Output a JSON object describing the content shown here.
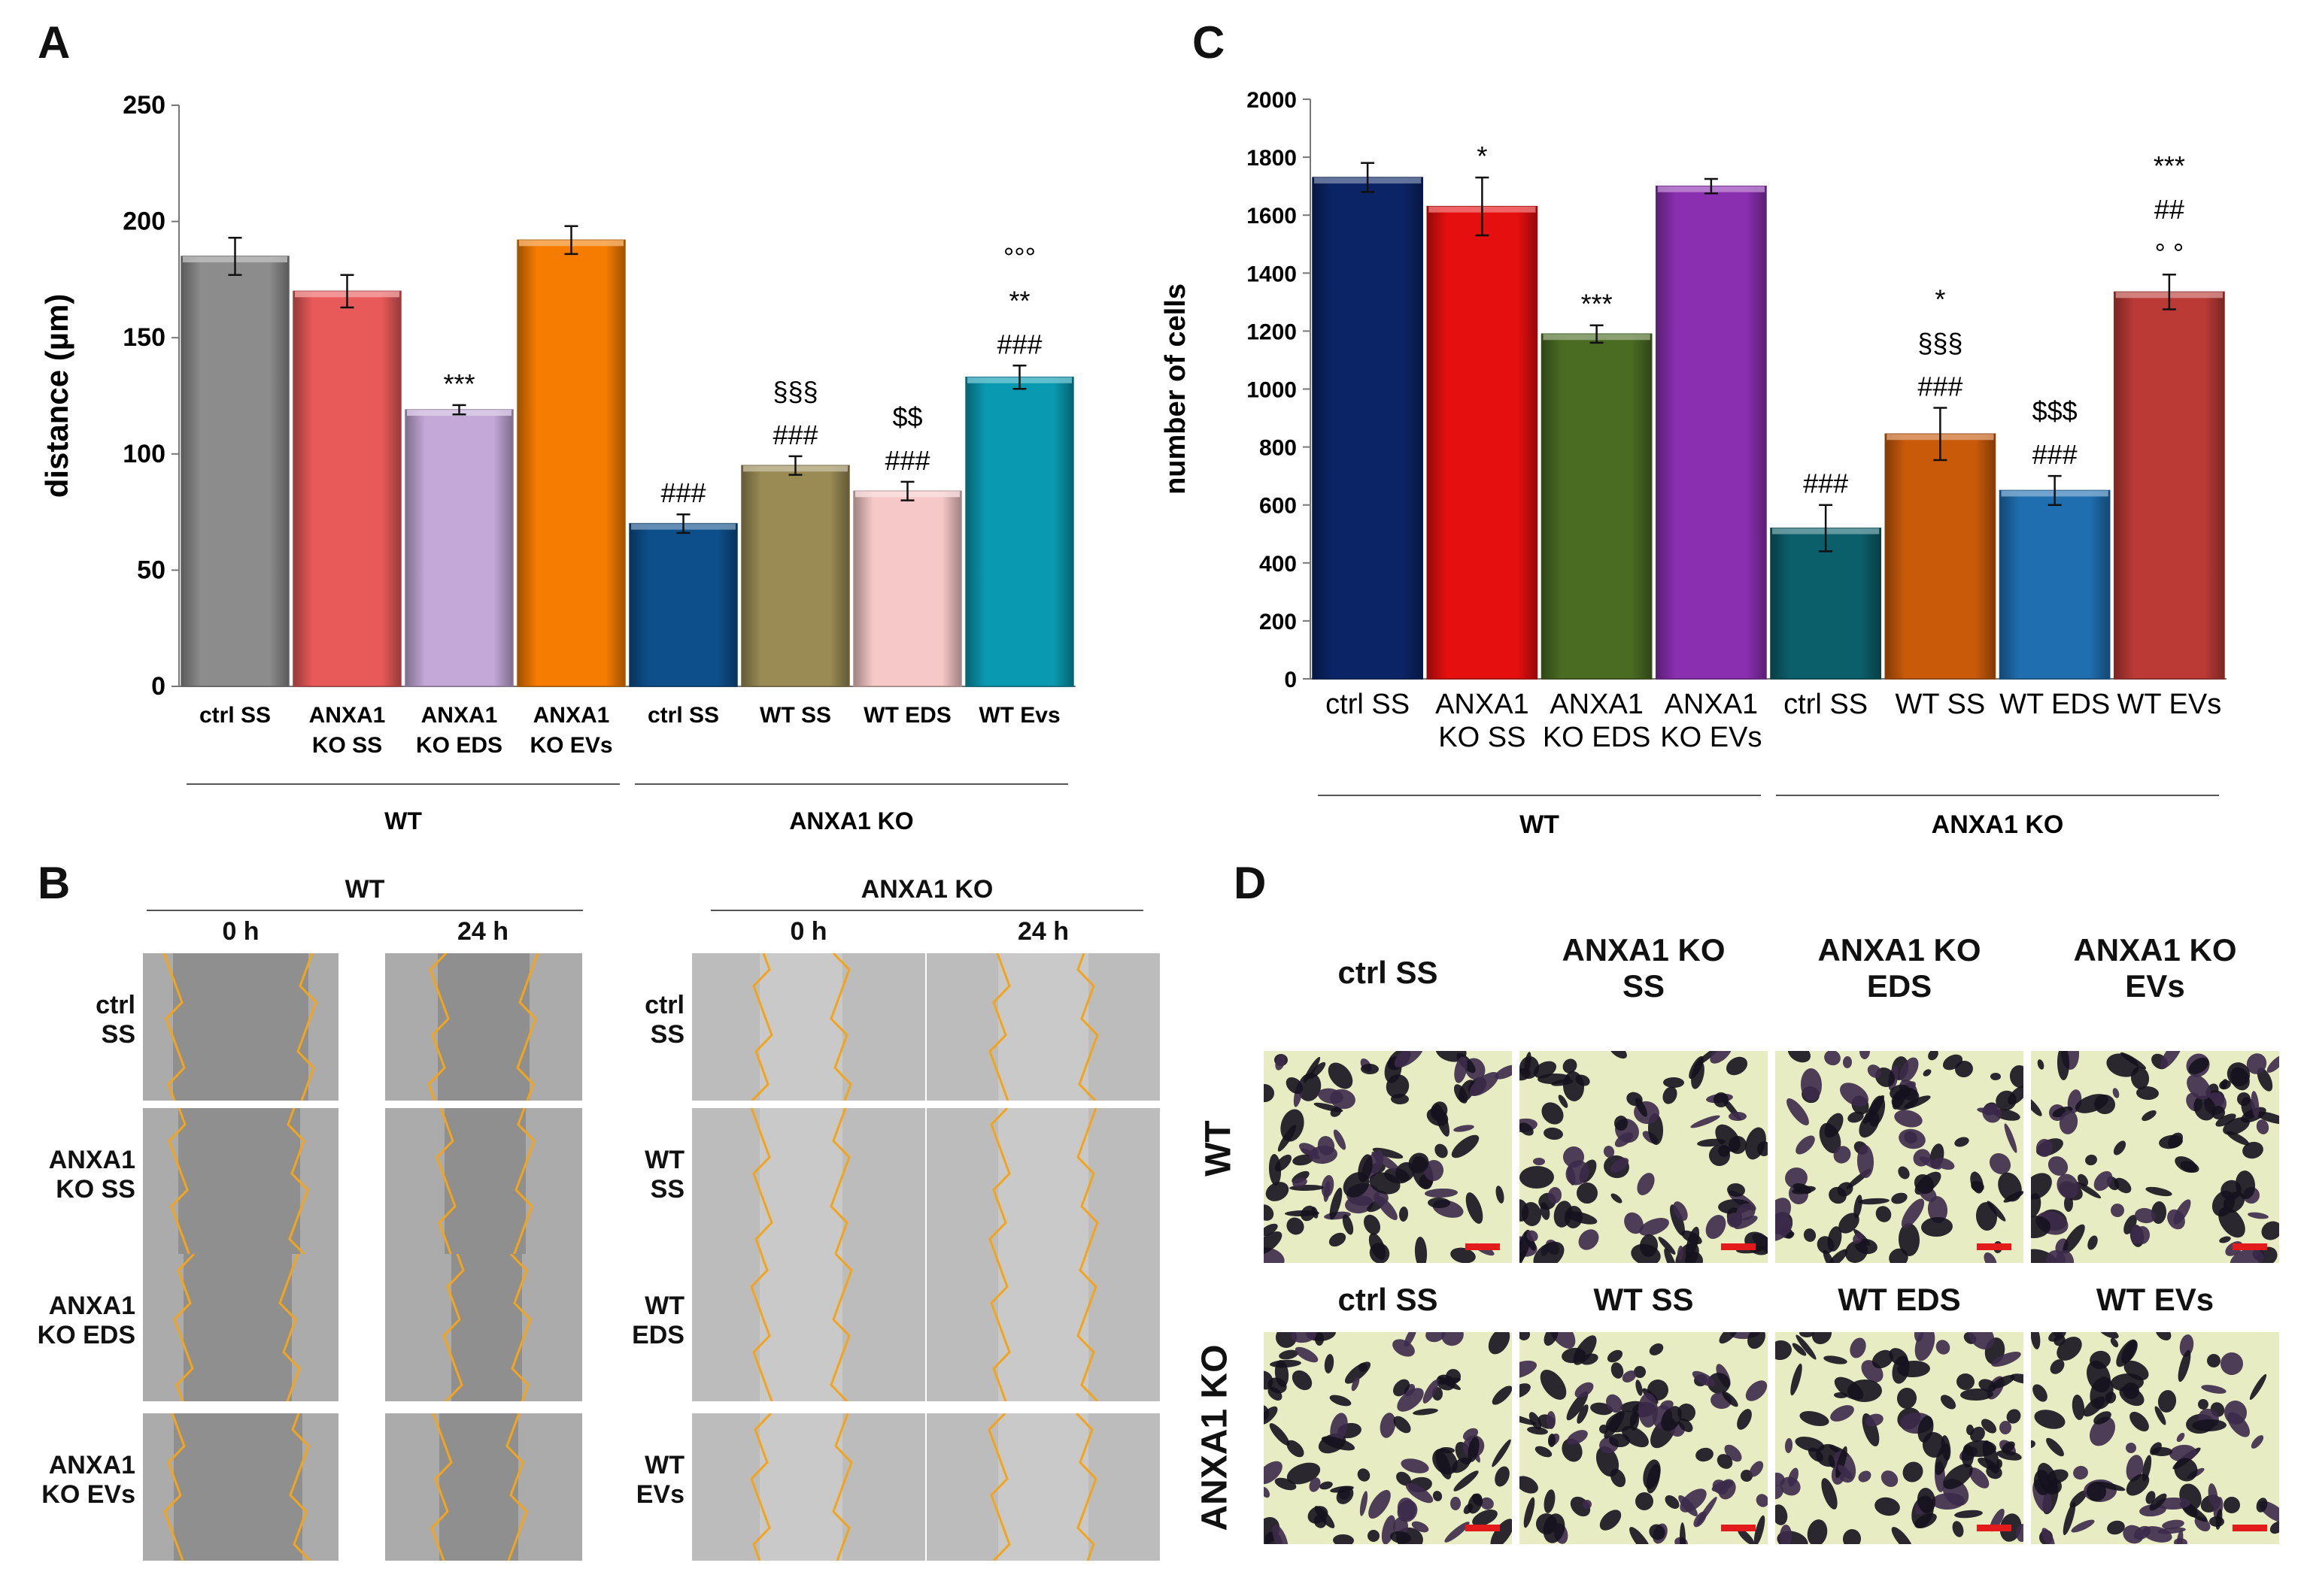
{
  "panels": {
    "A": "A",
    "B": "B",
    "C": "C",
    "D": "D"
  },
  "chart_data": [
    {
      "id": "A",
      "type": "bar",
      "ylabel": "distance (µm)",
      "xlabel": "",
      "ylim": [
        0,
        250
      ],
      "yticks": [
        0,
        50,
        100,
        150,
        200,
        250
      ],
      "categories": [
        "ctrl SS",
        "ANXA1 KO SS",
        "ANXA1 KO EDS",
        "ANXA1 KO EVs",
        "ctrl SS",
        "WT SS",
        "WT EDS",
        "WT Evs"
      ],
      "values": [
        185,
        170,
        119,
        192,
        70,
        95,
        84,
        133
      ],
      "errors": [
        8,
        7,
        2,
        6,
        4,
        4,
        4,
        5
      ],
      "colors": [
        "#8c8c8c",
        "#e85a5a",
        "#c4a8d8",
        "#f57c00",
        "#0d4f8b",
        "#9a8b55",
        "#f6c8c8",
        "#0999b0"
      ],
      "annotations": [
        [],
        [],
        [
          "***"
        ],
        [],
        [
          "###"
        ],
        [
          "§§§",
          "###"
        ],
        [
          "$$",
          "###"
        ],
        [
          "°°°",
          "**",
          "###"
        ]
      ],
      "groups": [
        {
          "label": "WT",
          "span": [
            0,
            3
          ]
        },
        {
          "label": "ANXA1 KO",
          "span": [
            4,
            7
          ]
        }
      ],
      "grid": false
    },
    {
      "id": "C",
      "type": "bar",
      "ylabel": "number of cells",
      "xlabel": "",
      "ylim": [
        0,
        2000
      ],
      "yticks": [
        0,
        200,
        400,
        600,
        800,
        1000,
        1200,
        1400,
        1600,
        1800,
        2000
      ],
      "categories": [
        "ctrl SS",
        "ANXA1 KO SS",
        "ANXA1 KO EDS",
        "ANXA1 KO EVs",
        "ctrl SS",
        "WT SS",
        "WT EDS",
        "WT EVs"
      ],
      "values": [
        1730,
        1630,
        1190,
        1700,
        520,
        845,
        650,
        1335
      ],
      "errors": [
        50,
        100,
        30,
        25,
        80,
        90,
        50,
        60
      ],
      "colors": [
        "#0a2466",
        "#e60f0f",
        "#4a6b22",
        "#8a2fb0",
        "#0b5f6a",
        "#c85a0a",
        "#1f6fb0",
        "#bb3a36"
      ],
      "annotations": [
        [],
        [
          "*"
        ],
        [
          "***"
        ],
        [],
        [
          "###"
        ],
        [
          "*",
          "§§§",
          "###"
        ],
        [
          "$$$",
          "###"
        ],
        [
          "***",
          "##",
          "° °"
        ]
      ],
      "groups": [
        {
          "label": "WT",
          "span": [
            0,
            3
          ]
        },
        {
          "label": "ANXA1 KO",
          "span": [
            4,
            7
          ]
        }
      ],
      "grid": false
    }
  ],
  "panelB": {
    "group_wt": "WT",
    "group_ko": "ANXA1 KO",
    "time_0": "0 h",
    "time_24": "24 h",
    "rows_wt": [
      "ctrl\nSS",
      "ANXA1\nKO SS",
      "ANXA1\nKO EDS",
      "ANXA1\nKO EVs"
    ],
    "rows_ko": [
      "ctrl\nSS",
      "WT\nSS",
      "WT\nEDS",
      "WT\nEVs"
    ]
  },
  "panelD": {
    "row_wt": "WT",
    "row_ko": "ANXA1 KO",
    "cols_wt": [
      "ctrl SS",
      "ANXA1 KO\nSS",
      "ANXA1 KO\nEDS",
      "ANXA1 KO\nEVs"
    ],
    "cols_ko": [
      "ctrl SS",
      "WT SS",
      "WT EDS",
      "WT EVs"
    ]
  }
}
